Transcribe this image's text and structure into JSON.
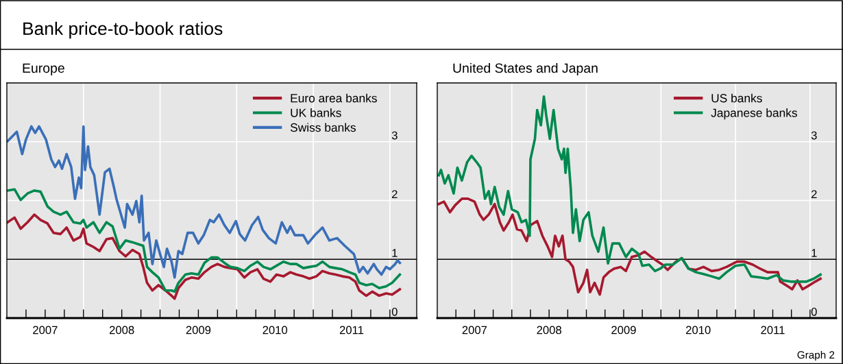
{
  "chart_data": [
    {
      "type": "line",
      "title": "Bank price-to-book ratios",
      "subtitle": "Europe",
      "xlim": [
        2007.0,
        2012.35
      ],
      "ylim": [
        0,
        4
      ],
      "xticks": [
        {
          "value": 2007.25,
          "label": null
        },
        {
          "value": 2007.5,
          "label": "2007"
        },
        {
          "value": 2007.75,
          "label": null
        },
        {
          "value": 2008,
          "label": null
        },
        {
          "value": 2008.25,
          "label": null
        },
        {
          "value": 2008.5,
          "label": "2008"
        },
        {
          "value": 2008.75,
          "label": null
        },
        {
          "value": 2009,
          "label": null
        },
        {
          "value": 2009.25,
          "label": null
        },
        {
          "value": 2009.5,
          "label": "2009"
        },
        {
          "value": 2009.75,
          "label": null
        },
        {
          "value": 2010,
          "label": null
        },
        {
          "value": 2010.25,
          "label": null
        },
        {
          "value": 2010.5,
          "label": "2010"
        },
        {
          "value": 2010.75,
          "label": null
        },
        {
          "value": 2011,
          "label": null
        },
        {
          "value": 2011.25,
          "label": null
        },
        {
          "value": 2011.5,
          "label": "2011"
        },
        {
          "value": 2011.75,
          "label": null
        },
        {
          "value": 2012,
          "label": null
        }
      ],
      "yticks": [
        0,
        1,
        2,
        3
      ],
      "grid": true,
      "legend": "top right",
      "ref_lines": [
        {
          "axis": "y",
          "value": 1,
          "color": "#000000"
        }
      ],
      "series": [
        {
          "name": "Euro area banks",
          "color": "#a6192e",
          "x": [
            2007.01,
            2007.1,
            2007.18,
            2007.27,
            2007.36,
            2007.44,
            2007.53,
            2007.61,
            2007.7,
            2007.78,
            2007.87,
            2007.96,
            2008.0,
            2008.04,
            2008.13,
            2008.21,
            2008.3,
            2008.38,
            2008.47,
            2008.55,
            2008.64,
            2008.73,
            2008.78,
            2008.83,
            2008.9,
            2008.98,
            2009.07,
            2009.15,
            2009.19,
            2009.24,
            2009.33,
            2009.41,
            2009.5,
            2009.58,
            2009.67,
            2009.75,
            2009.84,
            2009.92,
            2010.01,
            2010.1,
            2010.18,
            2010.27,
            2010.35,
            2010.44,
            2010.52,
            2010.61,
            2010.7,
            2010.78,
            2010.87,
            2010.95,
            2011.04,
            2011.12,
            2011.21,
            2011.29,
            2011.38,
            2011.47,
            2011.55,
            2011.6,
            2011.69,
            2011.77,
            2011.86,
            2011.95,
            2012.03,
            2012.13
          ],
          "values": [
            1.63,
            1.71,
            1.52,
            1.63,
            1.76,
            1.67,
            1.61,
            1.45,
            1.43,
            1.54,
            1.32,
            1.38,
            1.52,
            1.27,
            1.21,
            1.14,
            1.34,
            1.36,
            1.14,
            1.05,
            1.16,
            1.09,
            0.87,
            0.6,
            0.47,
            0.56,
            0.47,
            0.38,
            0.33,
            0.51,
            0.65,
            0.69,
            0.67,
            0.78,
            0.87,
            0.92,
            0.87,
            0.85,
            0.83,
            0.69,
            0.78,
            0.83,
            0.67,
            0.62,
            0.74,
            0.71,
            0.78,
            0.74,
            0.71,
            0.67,
            0.71,
            0.8,
            0.76,
            0.74,
            0.71,
            0.69,
            0.62,
            0.47,
            0.38,
            0.45,
            0.38,
            0.42,
            0.4,
            0.49
          ]
        },
        {
          "name": "UK banks",
          "color": "#00894f",
          "x": [
            2007.01,
            2007.1,
            2007.18,
            2007.27,
            2007.36,
            2007.44,
            2007.53,
            2007.61,
            2007.7,
            2007.78,
            2007.87,
            2007.96,
            2008.0,
            2008.04,
            2008.13,
            2008.21,
            2008.3,
            2008.38,
            2008.47,
            2008.55,
            2008.64,
            2008.73,
            2008.78,
            2008.83,
            2008.9,
            2008.98,
            2009.07,
            2009.15,
            2009.19,
            2009.24,
            2009.33,
            2009.41,
            2009.5,
            2009.58,
            2009.67,
            2009.75,
            2009.84,
            2009.92,
            2010.01,
            2010.1,
            2010.18,
            2010.27,
            2010.35,
            2010.44,
            2010.52,
            2010.61,
            2010.7,
            2010.78,
            2010.87,
            2010.95,
            2011.04,
            2011.12,
            2011.21,
            2011.29,
            2011.38,
            2011.47,
            2011.55,
            2011.6,
            2011.69,
            2011.77,
            2011.86,
            2011.95,
            2012.03,
            2012.13
          ],
          "values": [
            2.17,
            2.19,
            2.01,
            2.12,
            2.17,
            2.15,
            1.9,
            1.81,
            1.76,
            1.81,
            1.63,
            1.61,
            1.67,
            1.54,
            1.63,
            1.45,
            1.63,
            1.56,
            1.18,
            1.32,
            1.29,
            1.25,
            1.23,
            0.87,
            0.78,
            0.69,
            0.47,
            0.47,
            0.45,
            0.6,
            0.74,
            0.76,
            0.74,
            0.94,
            1.03,
            1.03,
            0.94,
            0.87,
            0.85,
            0.8,
            0.89,
            0.96,
            0.87,
            0.83,
            0.89,
            0.96,
            0.92,
            0.92,
            0.85,
            0.87,
            0.89,
            0.96,
            0.87,
            0.85,
            0.83,
            0.78,
            0.74,
            0.6,
            0.56,
            0.58,
            0.51,
            0.54,
            0.6,
            0.74
          ]
        },
        {
          "name": "Swiss banks",
          "color": "#3a6fb8",
          "x": [
            2007.01,
            2007.13,
            2007.2,
            2007.25,
            2007.32,
            2007.37,
            2007.42,
            2007.51,
            2007.58,
            2007.63,
            2007.68,
            2007.72,
            2007.78,
            2007.84,
            2007.89,
            2007.94,
            2007.97,
            2008.0,
            2008.02,
            2008.06,
            2008.09,
            2008.14,
            2008.21,
            2008.28,
            2008.34,
            2008.4,
            2008.43,
            2008.54,
            2008.57,
            2008.64,
            2008.69,
            2008.73,
            2008.76,
            2008.79,
            2008.85,
            2008.9,
            2008.95,
            2009.0,
            2009.05,
            2009.09,
            2009.15,
            2009.19,
            2009.24,
            2009.29,
            2009.36,
            2009.43,
            2009.5,
            2009.57,
            2009.65,
            2009.7,
            2009.77,
            2009.84,
            2009.91,
            2009.99,
            2010.04,
            2010.11,
            2010.2,
            2010.28,
            2010.34,
            2010.42,
            2010.51,
            2010.59,
            2010.66,
            2010.7,
            2010.76,
            2010.87,
            2010.93,
            2011.02,
            2011.12,
            2011.21,
            2011.31,
            2011.41,
            2011.53,
            2011.6,
            2011.65,
            2011.71,
            2011.79,
            2011.83,
            2011.89,
            2011.95,
            2012.0,
            2012.07,
            2012.1,
            2012.13
          ],
          "values": [
            3.01,
            3.17,
            2.79,
            3.04,
            3.26,
            3.15,
            3.26,
            3.04,
            2.7,
            2.57,
            2.68,
            2.54,
            2.79,
            2.57,
            2.03,
            2.39,
            2.21,
            3.26,
            2.52,
            2.92,
            2.57,
            2.43,
            1.76,
            2.48,
            2.54,
            2.21,
            2.03,
            1.54,
            1.94,
            1.76,
            1.99,
            1.63,
            2.08,
            1.32,
            1.45,
            0.92,
            1.32,
            1.09,
            0.87,
            1.18,
            0.96,
            0.69,
            1.14,
            1.09,
            1.45,
            1.45,
            1.27,
            1.41,
            1.67,
            1.63,
            1.76,
            1.58,
            1.45,
            1.65,
            1.43,
            1.32,
            1.58,
            1.72,
            1.5,
            1.36,
            1.27,
            1.63,
            1.45,
            1.56,
            1.41,
            1.41,
            1.27,
            1.41,
            1.54,
            1.32,
            1.36,
            1.23,
            1.09,
            0.78,
            0.87,
            0.76,
            0.92,
            0.83,
            0.74,
            0.87,
            0.83,
            0.92,
            0.98,
            0.94
          ]
        }
      ]
    },
    {
      "type": "line",
      "subtitle": "United States and Japan",
      "annotations": [
        "Graph 2"
      ],
      "xlim": [
        2007.0,
        2012.35
      ],
      "ylim": [
        0,
        4
      ],
      "xticks": [
        {
          "value": 2007.25,
          "label": null
        },
        {
          "value": 2007.5,
          "label": "2007"
        },
        {
          "value": 2007.75,
          "label": null
        },
        {
          "value": 2008,
          "label": null
        },
        {
          "value": 2008.25,
          "label": null
        },
        {
          "value": 2008.5,
          "label": "2008"
        },
        {
          "value": 2008.75,
          "label": null
        },
        {
          "value": 2009,
          "label": null
        },
        {
          "value": 2009.25,
          "label": null
        },
        {
          "value": 2009.5,
          "label": "2009"
        },
        {
          "value": 2009.75,
          "label": null
        },
        {
          "value": 2010,
          "label": null
        },
        {
          "value": 2010.25,
          "label": null
        },
        {
          "value": 2010.5,
          "label": "2010"
        },
        {
          "value": 2010.75,
          "label": null
        },
        {
          "value": 2011,
          "label": null
        },
        {
          "value": 2011.25,
          "label": null
        },
        {
          "value": 2011.5,
          "label": "2011"
        },
        {
          "value": 2011.75,
          "label": null
        },
        {
          "value": 2012,
          "label": null
        }
      ],
      "yticks": [
        0,
        1,
        2,
        3
      ],
      "grid": true,
      "legend": "top right",
      "ref_lines": [
        {
          "axis": "y",
          "value": 1,
          "color": "#000000"
        }
      ],
      "series": [
        {
          "name": "US banks",
          "color": "#a6192e",
          "x": [
            2007.02,
            2007.09,
            2007.17,
            2007.24,
            2007.33,
            2007.41,
            2007.5,
            2007.57,
            2007.62,
            2007.69,
            2007.77,
            2007.84,
            2007.89,
            2007.96,
            2008.01,
            2008.07,
            2008.13,
            2008.2,
            2008.25,
            2008.34,
            2008.41,
            2008.48,
            2008.54,
            2008.58,
            2008.63,
            2008.68,
            2008.72,
            2008.77,
            2008.82,
            2008.89,
            2008.96,
            2009.01,
            2009.05,
            2009.11,
            2009.18,
            2009.23,
            2009.3,
            2009.37,
            2009.46,
            2009.53,
            2009.61,
            2009.7,
            2009.78,
            2009.87,
            2009.96,
            2010.02,
            2010.09,
            2010.2,
            2010.28,
            2010.37,
            2010.47,
            2010.57,
            2010.68,
            2010.78,
            2010.88,
            2011.02,
            2011.12,
            2011.23,
            2011.33,
            2011.43,
            2011.57,
            2011.6,
            2011.69,
            2011.76,
            2011.83,
            2011.9,
            2011.98,
            2012.07,
            2012.14
          ],
          "values": [
            1.94,
            1.98,
            1.8,
            1.92,
            2.03,
            2.03,
            1.98,
            1.76,
            1.67,
            1.76,
            1.94,
            1.63,
            1.49,
            1.63,
            1.76,
            1.51,
            1.49,
            1.31,
            1.58,
            1.65,
            1.4,
            1.22,
            1.04,
            1.4,
            1.22,
            1.4,
            1.0,
            0.96,
            0.87,
            0.44,
            0.6,
            0.82,
            0.44,
            0.6,
            0.4,
            0.69,
            0.78,
            0.84,
            0.87,
            0.8,
            1.04,
            1.07,
            1.13,
            1.04,
            0.96,
            0.91,
            0.82,
            0.96,
            1.02,
            0.84,
            0.82,
            0.87,
            0.8,
            0.82,
            0.87,
            0.96,
            0.96,
            0.91,
            0.84,
            0.78,
            0.78,
            0.62,
            0.55,
            0.49,
            0.64,
            0.49,
            0.55,
            0.62,
            0.67
          ]
        },
        {
          "name": "Japanese banks",
          "color": "#00894f",
          "x": [
            2007.02,
            2007.05,
            2007.1,
            2007.15,
            2007.22,
            2007.27,
            2007.33,
            2007.4,
            2007.46,
            2007.53,
            2007.58,
            2007.64,
            2007.69,
            2007.72,
            2007.77,
            2007.83,
            2007.89,
            2007.95,
            2008.0,
            2008.08,
            2008.13,
            2008.19,
            2008.24,
            2008.25,
            2008.31,
            2008.34,
            2008.39,
            2008.43,
            2008.46,
            2008.51,
            2008.56,
            2008.62,
            2008.67,
            2008.7,
            2008.72,
            2008.75,
            2008.79,
            2008.82,
            2008.86,
            2008.91,
            2008.96,
            2009.03,
            2009.08,
            2009.16,
            2009.23,
            2009.29,
            2009.35,
            2009.44,
            2009.53,
            2009.61,
            2009.7,
            2009.75,
            2009.84,
            2009.92,
            2009.99,
            2010.06,
            2010.16,
            2010.28,
            2010.37,
            2010.47,
            2010.57,
            2010.68,
            2010.78,
            2010.88,
            2011.0,
            2011.12,
            2011.21,
            2011.33,
            2011.43,
            2011.55,
            2011.64,
            2011.74,
            2011.85,
            2011.95,
            2012.05,
            2012.14
          ],
          "values": [
            2.43,
            2.52,
            2.29,
            2.43,
            2.12,
            2.56,
            2.34,
            2.65,
            2.76,
            2.65,
            2.56,
            2.03,
            2.16,
            1.94,
            2.23,
            1.89,
            1.76,
            2.16,
            1.85,
            1.8,
            1.63,
            1.67,
            1.4,
            2.7,
            3.05,
            3.54,
            3.28,
            3.77,
            3.46,
            3.05,
            3.54,
            2.88,
            2.7,
            2.88,
            2.47,
            2.88,
            2.21,
            1.45,
            1.85,
            1.31,
            1.67,
            1.8,
            1.4,
            1.13,
            1.54,
            0.93,
            1.27,
            1.27,
            1.04,
            1.18,
            1.09,
            0.89,
            0.91,
            0.8,
            0.84,
            0.91,
            0.91,
            1.02,
            0.84,
            0.78,
            0.75,
            0.71,
            0.67,
            0.78,
            0.89,
            0.91,
            0.71,
            0.69,
            0.67,
            0.73,
            0.64,
            0.62,
            0.62,
            0.62,
            0.67,
            0.74
          ]
        }
      ]
    }
  ]
}
